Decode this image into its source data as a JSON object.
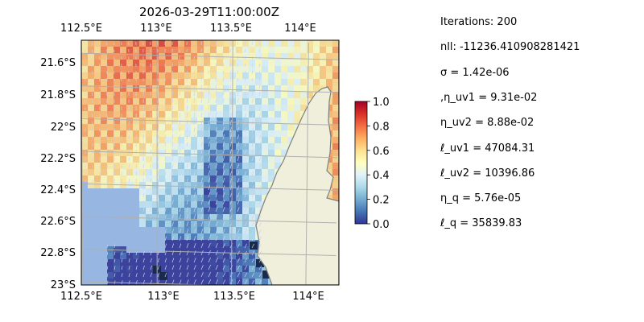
{
  "chart_data": {
    "type": "heatmap",
    "title": "2026-03-29T11:00:00Z",
    "xlabel": "",
    "ylabel": "",
    "x_ticks": [
      "112.5°E",
      "113°E",
      "113.5°E",
      "114°E"
    ],
    "y_ticks": [
      "21.6°S",
      "21.8°S",
      "22°S",
      "22.2°S",
      "22.4°S",
      "22.6°S",
      "22.8°S",
      "23°S"
    ],
    "xlim": [
      112.5,
      114.2
    ],
    "ylim": [
      -23.0,
      -21.5
    ],
    "grid": true,
    "overlay": "velocity vector arrows",
    "colorbar": {
      "ticks": [
        "0.0",
        "0.2",
        "0.4",
        "0.6",
        "0.8",
        "1.0"
      ],
      "range": [
        0,
        1
      ],
      "colormap": [
        "#313695",
        "#4575b4",
        "#74add1",
        "#abd9e9",
        "#e0f3f8",
        "#ffffbf",
        "#fee090",
        "#fdae61",
        "#f46d43",
        "#d73027",
        "#a50026"
      ]
    },
    "colors": {
      "ocean": "#97b6e1",
      "land": "#efefdb",
      "coast": "#7f7f7f",
      "grid": "#b0b0b0",
      "arrow": "#d0d0f0"
    }
  },
  "parameters": [
    "Iterations: 200",
    "nll: -11236.410908281421",
    "σ = 1.42e-06",
    ",η_uv1 = 9.31e-02",
    "η_uv2 = 8.88e-02",
    "ℓ_uv1 = 47084.31",
    "ℓ_uv2 = 10396.86",
    "η_q = 5.76e-05",
    "ℓ_q = 35839.83"
  ]
}
